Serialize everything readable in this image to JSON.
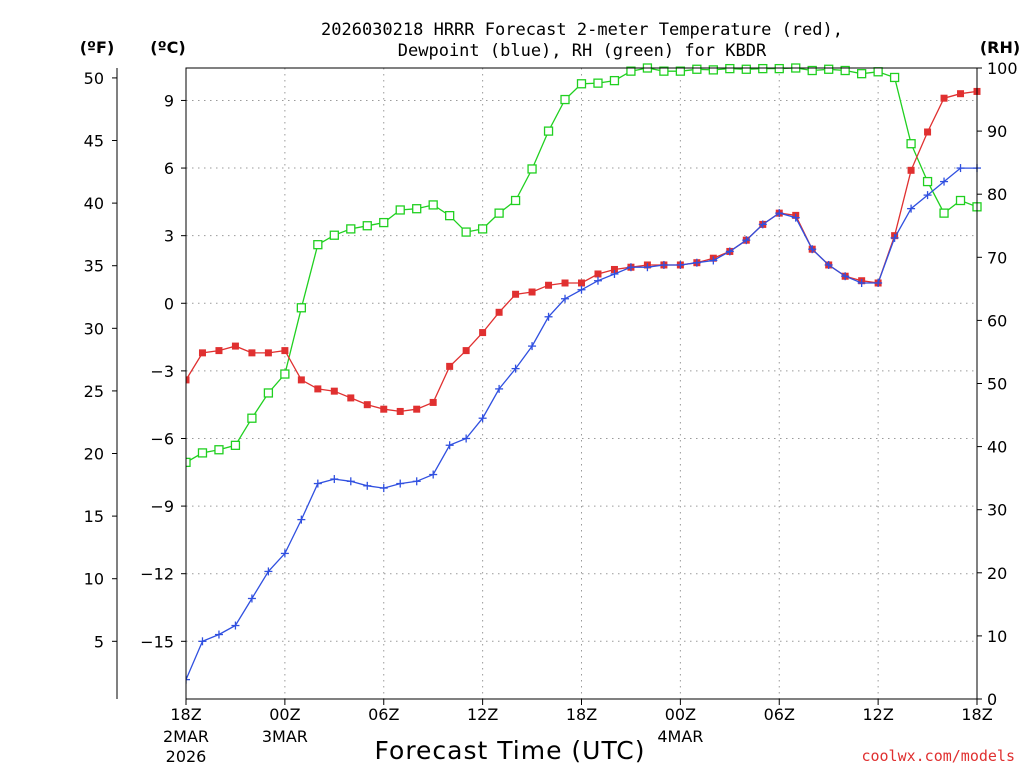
{
  "chart_data": {
    "type": "line",
    "title_line1": "2026030218 HRRR Forecast 2-meter Temperature (red),",
    "title_line2": "Dewpoint (blue), RH (green) for KBDR",
    "xlabel": "Forecast Time (UTC)",
    "left_axis_f_label": "(ºF)",
    "left_axis_c_label": "(ºC)",
    "right_axis_label": "(RH)",
    "credit": "coolwx.com/models",
    "x_range_hours": [
      0,
      48
    ],
    "y_celsius_range": [
      -17.56,
      10.44
    ],
    "y_rh_range": [
      0,
      100
    ],
    "fahrenheit_ticks": [
      5,
      10,
      15,
      20,
      25,
      30,
      35,
      40,
      45,
      50
    ],
    "celsius_ticks": [
      -15,
      -12,
      -9,
      -6,
      -3,
      0,
      3,
      6,
      9
    ],
    "rh_ticks": [
      0,
      10,
      20,
      30,
      40,
      50,
      60,
      70,
      80,
      90,
      100
    ],
    "x_ticks": [
      {
        "hour": 0,
        "label": "18Z",
        "sub1": "2MAR",
        "sub2": "2026"
      },
      {
        "hour": 6,
        "label": "00Z",
        "sub1": "3MAR",
        "sub2": ""
      },
      {
        "hour": 12,
        "label": "06Z",
        "sub1": "",
        "sub2": ""
      },
      {
        "hour": 18,
        "label": "12Z",
        "sub1": "",
        "sub2": ""
      },
      {
        "hour": 24,
        "label": "18Z",
        "sub1": "",
        "sub2": ""
      },
      {
        "hour": 30,
        "label": "00Z",
        "sub1": "4MAR",
        "sub2": ""
      },
      {
        "hour": 36,
        "label": "06Z",
        "sub1": "",
        "sub2": ""
      },
      {
        "hour": 42,
        "label": "12Z",
        "sub1": "",
        "sub2": ""
      },
      {
        "hour": 48,
        "label": "18Z",
        "sub1": "",
        "sub2": ""
      }
    ],
    "series": [
      {
        "name": "2-meter Temperature",
        "units": "°C",
        "color": "#e03030",
        "marker": "filled-square",
        "x": [
          0,
          1,
          2,
          3,
          4,
          5,
          6,
          7,
          8,
          9,
          10,
          11,
          12,
          13,
          14,
          15,
          16,
          17,
          18,
          19,
          20,
          21,
          22,
          23,
          24,
          25,
          26,
          27,
          28,
          29,
          30,
          31,
          32,
          33,
          34,
          35,
          36,
          37,
          38,
          39,
          40,
          41,
          42,
          43,
          44,
          45,
          46,
          47,
          48
        ],
        "values": [
          -3.4,
          -2.2,
          -2.1,
          -1.9,
          -2.2,
          -2.2,
          -2.1,
          -3.4,
          -3.8,
          -3.9,
          -4.2,
          -4.5,
          -4.7,
          -4.8,
          -4.7,
          -4.4,
          -2.8,
          -2.1,
          -1.3,
          -0.4,
          0.4,
          0.5,
          0.8,
          0.9,
          0.9,
          1.3,
          1.5,
          1.6,
          1.7,
          1.7,
          1.7,
          1.8,
          2.0,
          2.3,
          2.8,
          3.5,
          4.0,
          3.9,
          2.4,
          1.7,
          1.2,
          1.0,
          0.9,
          3.0,
          5.9,
          7.6,
          9.1,
          9.3,
          9.4
        ]
      },
      {
        "name": "Dewpoint",
        "units": "°C",
        "color": "#3050e0",
        "marker": "plus",
        "x": [
          0,
          1,
          2,
          3,
          4,
          5,
          6,
          7,
          8,
          9,
          10,
          11,
          12,
          13,
          14,
          15,
          16,
          17,
          18,
          19,
          20,
          21,
          22,
          23,
          24,
          25,
          26,
          27,
          28,
          29,
          30,
          31,
          32,
          33,
          34,
          35,
          36,
          37,
          38,
          39,
          40,
          41,
          42,
          43,
          44,
          45,
          46,
          47,
          48
        ],
        "values": [
          -16.7,
          -15.0,
          -14.7,
          -14.3,
          -13.1,
          -11.9,
          -11.1,
          -9.6,
          -8.0,
          -7.8,
          -7.9,
          -8.1,
          -8.2,
          -8.0,
          -7.9,
          -7.6,
          -6.3,
          -6.0,
          -5.1,
          -3.8,
          -2.9,
          -1.9,
          -0.6,
          0.2,
          0.6,
          1.0,
          1.3,
          1.6,
          1.6,
          1.7,
          1.7,
          1.8,
          1.9,
          2.3,
          2.8,
          3.5,
          4.0,
          3.8,
          2.4,
          1.7,
          1.2,
          0.9,
          0.9,
          2.9,
          4.2,
          4.8,
          5.4,
          6.0,
          6.0
        ]
      },
      {
        "name": "Relative Humidity",
        "units": "%",
        "color": "#20d020",
        "marker": "open-square",
        "x": [
          0,
          1,
          2,
          3,
          4,
          5,
          6,
          7,
          8,
          9,
          10,
          11,
          12,
          13,
          14,
          15,
          16,
          17,
          18,
          19,
          20,
          21,
          22,
          23,
          24,
          25,
          26,
          27,
          28,
          29,
          30,
          31,
          32,
          33,
          34,
          35,
          36,
          37,
          38,
          39,
          40,
          41,
          42,
          43,
          44,
          45,
          46,
          47,
          48
        ],
        "values": [
          37.5,
          39.0,
          39.5,
          40.2,
          44.5,
          48.5,
          51.5,
          62.0,
          72.0,
          73.5,
          74.5,
          75.0,
          75.5,
          77.5,
          77.7,
          78.3,
          76.6,
          74.0,
          74.5,
          77.0,
          79.0,
          84.0,
          90.0,
          95.0,
          97.5,
          97.6,
          98.0,
          99.5,
          100.0,
          99.5,
          99.5,
          99.8,
          99.7,
          99.9,
          99.8,
          99.9,
          99.9,
          100.0,
          99.6,
          99.8,
          99.6,
          99.1,
          99.4,
          98.5,
          88.0,
          82.0,
          77.0,
          79.0,
          78.0
        ]
      }
    ]
  }
}
